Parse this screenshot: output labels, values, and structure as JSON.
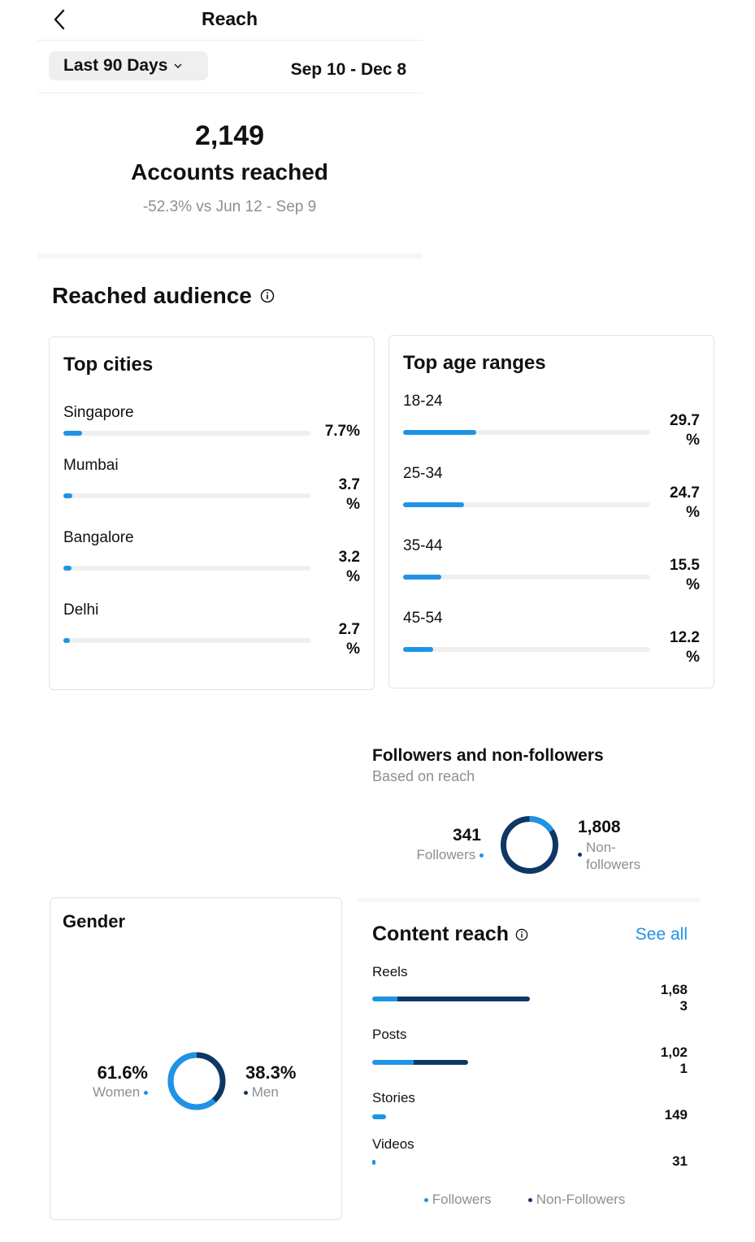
{
  "header": {
    "title": "Reach",
    "back_icon": "chevron-left-icon"
  },
  "date_filter": {
    "selected": "Last 90 Days",
    "range": "Sep 10 - Dec 8"
  },
  "summary": {
    "value": "2,149",
    "label": "Accounts reached",
    "comparison": "-52.3% vs Jun 12 - Sep 9"
  },
  "reached_audience": {
    "title": "Reached audience",
    "top_cities": {
      "title": "Top cities",
      "items": [
        {
          "label": "Singapore",
          "value": "7.7%",
          "percent": 7.7
        },
        {
          "label": "Mumbai",
          "value_line1": "3.7",
          "value_line2": "%",
          "percent": 3.7
        },
        {
          "label": "Bangalore",
          "value_line1": "3.2",
          "value_line2": "%",
          "percent": 3.2
        },
        {
          "label": "Delhi",
          "value_line1": "2.7",
          "value_line2": "%",
          "percent": 2.7
        }
      ]
    },
    "top_age_ranges": {
      "title": "Top age ranges",
      "items": [
        {
          "label": "18-24",
          "value_line1": "29.7",
          "value_line2": "%",
          "percent": 29.7
        },
        {
          "label": "25-34",
          "value_line1": "24.7",
          "value_line2": "%",
          "percent": 24.7
        },
        {
          "label": "35-44",
          "value_line1": "15.5",
          "value_line2": "%",
          "percent": 15.5
        },
        {
          "label": "45-54",
          "value_line1": "12.2",
          "value_line2": "%",
          "percent": 12.2
        }
      ]
    }
  },
  "followers_split": {
    "title": "Followers and non-followers",
    "subtitle": "Based on reach",
    "followers": {
      "value": "341",
      "label": "Followers"
    },
    "non_followers": {
      "value": "1,808",
      "label_line1": "Non-",
      "label_line2": "followers"
    }
  },
  "gender": {
    "title": "Gender",
    "women": {
      "value": "61.6%",
      "label": "Women",
      "fraction": 0.616
    },
    "men": {
      "value": "38.3%",
      "label": "Men",
      "fraction": 0.383
    }
  },
  "content_reach": {
    "title": "Content reach",
    "see_all": "See all",
    "items": [
      {
        "label": "Reels",
        "value_line1": "1,68",
        "value_line2": "3",
        "total": 1683,
        "followers_share": 0.16
      },
      {
        "label": "Posts",
        "value_line1": "1,02",
        "value_line2": "1",
        "total": 1021,
        "followers_share": 0.43
      },
      {
        "label": "Stories",
        "value_line1": "149",
        "value_line2": "",
        "total": 149,
        "followers_share": 1.0
      },
      {
        "label": "Videos",
        "value_line1": "31",
        "value_line2": "",
        "total": 31,
        "followers_share": 1.0
      }
    ],
    "legend": {
      "followers": "Followers",
      "non_followers": "Non-Followers"
    }
  },
  "colors": {
    "accent": "#1f93e6",
    "dark_blue": "#0e3766",
    "track": "#efefef",
    "muted_text": "#8e8e8e"
  }
}
